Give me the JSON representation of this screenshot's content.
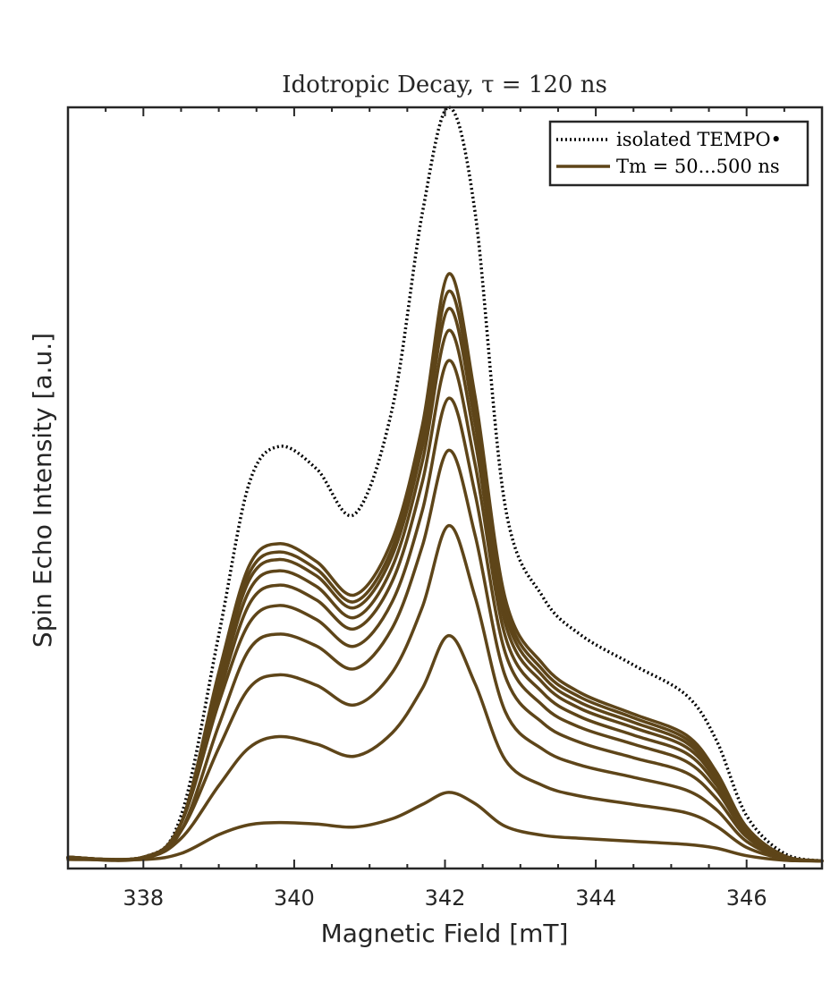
{
  "chart_data": {
    "type": "line",
    "title": "Idotropic Decay, τ = 120 ns",
    "xlabel": "Magnetic Field [mT]",
    "ylabel": "Spin Echo Intensity [a.u.]",
    "xlim": [
      337,
      347
    ],
    "ylim": [
      -0.01,
      1.0
    ],
    "xticks": [
      338,
      340,
      342,
      344,
      346
    ],
    "xtick_labels": [
      "338",
      "340",
      "342",
      "344",
      "346"
    ],
    "yticks_visible": false,
    "grid": false,
    "legend_position": "top-right",
    "legend": [
      {
        "label": "isolated TEMPO•",
        "style": "dotted",
        "color": "#000000"
      },
      {
        "label": "Tm = 50...500 ns",
        "style": "solid",
        "color": "#5e4519"
      }
    ],
    "x": [
      338,
      338.5,
      339,
      339.4,
      339.8,
      340.3,
      340.8,
      341.3,
      341.7,
      342.05,
      342.4,
      342.8,
      343.3,
      343.8,
      344.5,
      345.2,
      345.6,
      346.0,
      346.5,
      347
    ],
    "series": [
      {
        "style": "dotted",
        "color": "#000000",
        "values": [
          0.005,
          0.06,
          0.3,
          0.5,
          0.55,
          0.52,
          0.46,
          0.6,
          0.86,
          1.0,
          0.86,
          0.47,
          0.35,
          0.3,
          0.26,
          0.22,
          0.16,
          0.06,
          0.01,
          0.0
        ]
      },
      {
        "style": "solid",
        "color": "#5e4519",
        "values": [
          0.002,
          0.01,
          0.035,
          0.048,
          0.051,
          0.049,
          0.045,
          0.056,
          0.075,
          0.091,
          0.076,
          0.046,
          0.034,
          0.03,
          0.026,
          0.022,
          0.017,
          0.007,
          0.001,
          0.0
        ]
      },
      {
        "style": "solid",
        "color": "#5e4519",
        "values": [
          0.004,
          0.03,
          0.1,
          0.15,
          0.165,
          0.155,
          0.139,
          0.17,
          0.229,
          0.299,
          0.235,
          0.134,
          0.1,
          0.086,
          0.075,
          0.064,
          0.046,
          0.018,
          0.003,
          0.0
        ]
      },
      {
        "style": "solid",
        "color": "#5e4519",
        "values": [
          0.004,
          0.04,
          0.15,
          0.229,
          0.247,
          0.233,
          0.207,
          0.25,
          0.337,
          0.445,
          0.35,
          0.198,
          0.148,
          0.127,
          0.111,
          0.094,
          0.068,
          0.026,
          0.004,
          0.0
        ]
      },
      {
        "style": "solid",
        "color": "#5e4519",
        "values": [
          0.004,
          0.04,
          0.18,
          0.28,
          0.301,
          0.285,
          0.255,
          0.309,
          0.418,
          0.545,
          0.432,
          0.245,
          0.183,
          0.157,
          0.137,
          0.117,
          0.083,
          0.032,
          0.005,
          0.0
        ]
      },
      {
        "style": "solid",
        "color": "#5e4519",
        "values": [
          0.004,
          0.05,
          0.21,
          0.315,
          0.339,
          0.32,
          0.285,
          0.344,
          0.465,
          0.614,
          0.487,
          0.276,
          0.206,
          0.177,
          0.155,
          0.132,
          0.094,
          0.036,
          0.005,
          0.0
        ]
      },
      {
        "style": "solid",
        "color": "#5e4519",
        "values": [
          0.005,
          0.05,
          0.22,
          0.34,
          0.366,
          0.346,
          0.308,
          0.371,
          0.503,
          0.664,
          0.526,
          0.298,
          0.223,
          0.191,
          0.167,
          0.143,
          0.101,
          0.039,
          0.006,
          0.0
        ]
      },
      {
        "style": "solid",
        "color": "#5e4519",
        "values": [
          0.005,
          0.05,
          0.23,
          0.358,
          0.385,
          0.364,
          0.323,
          0.39,
          0.53,
          0.704,
          0.557,
          0.315,
          0.236,
          0.202,
          0.177,
          0.151,
          0.107,
          0.041,
          0.006,
          0.0
        ]
      },
      {
        "style": "solid",
        "color": "#5e4519",
        "values": [
          0.005,
          0.05,
          0.24,
          0.372,
          0.4,
          0.378,
          0.336,
          0.405,
          0.55,
          0.733,
          0.58,
          0.328,
          0.245,
          0.21,
          0.184,
          0.157,
          0.111,
          0.043,
          0.006,
          0.0
        ]
      },
      {
        "style": "solid",
        "color": "#5e4519",
        "values": [
          0.005,
          0.05,
          0.245,
          0.381,
          0.41,
          0.387,
          0.344,
          0.415,
          0.563,
          0.756,
          0.598,
          0.338,
          0.253,
          0.217,
          0.19,
          0.162,
          0.115,
          0.044,
          0.006,
          0.0
        ]
      },
      {
        "style": "solid",
        "color": "#5e4519",
        "values": [
          0.005,
          0.05,
          0.25,
          0.391,
          0.421,
          0.397,
          0.353,
          0.426,
          0.578,
          0.779,
          0.616,
          0.348,
          0.261,
          0.223,
          0.195,
          0.167,
          0.118,
          0.045,
          0.007,
          0.0
        ]
      }
    ]
  }
}
